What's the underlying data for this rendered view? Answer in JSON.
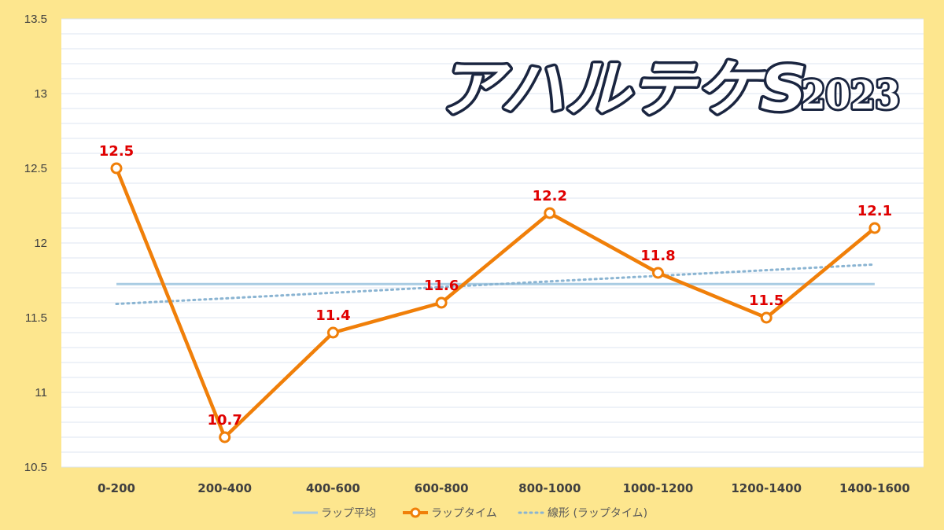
{
  "colors": {
    "frame": "#fde68e",
    "plot_background": "#ffffff",
    "gridline": "#dce6f0",
    "lap_line": "#f07f09",
    "average_line": "#a9cce3",
    "trend_line": "#8ab4d2",
    "data_label": "#e00000",
    "title_fill": "#ffffff",
    "title_outline": "#1a2540"
  },
  "chart_data": {
    "type": "line",
    "title": "アハルテケS",
    "title_year": "2023",
    "categories": [
      "0-200",
      "200-400",
      "400-600",
      "600-800",
      "800-1000",
      "1000-1200",
      "1200-1400",
      "1400-1600"
    ],
    "ylim": [
      10.5,
      13.5
    ],
    "yticks": [
      10.5,
      11,
      11.5,
      12,
      12.5,
      13,
      13.5
    ],
    "ytick_labels": [
      "10.5",
      "11",
      "11.5",
      "12",
      "12.5",
      "13",
      "13.5"
    ],
    "grid": true,
    "legend_position": "bottom",
    "series": [
      {
        "name": "ラップ平均",
        "kind": "average",
        "values": [
          11.725,
          11.725,
          11.725,
          11.725,
          11.725,
          11.725,
          11.725,
          11.725
        ]
      },
      {
        "name": "ラップタイム",
        "kind": "lap",
        "values": [
          12.5,
          10.7,
          11.4,
          11.6,
          12.2,
          11.8,
          11.5,
          12.1
        ],
        "data_labels": [
          "12.5",
          "10.7",
          "11.4",
          "11.6",
          "12.2",
          "11.8",
          "11.5",
          "12.1"
        ]
      },
      {
        "name": "線形 (ラップタイム)",
        "kind": "trend",
        "values": [
          11.592,
          11.629,
          11.667,
          11.705,
          11.743,
          11.78,
          11.818,
          11.856
        ]
      }
    ]
  }
}
